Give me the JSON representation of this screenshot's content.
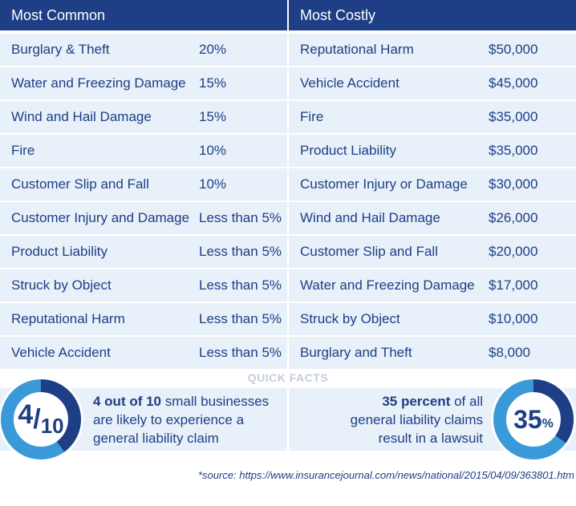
{
  "headers": {
    "left": "Most Common",
    "right": "Most Costly"
  },
  "rows": [
    {
      "common_name": "Burglary & Theft",
      "common_value": "20%",
      "costly_name": "Reputational Harm",
      "costly_value": "$50,000"
    },
    {
      "common_name": "Water and Freezing Damage",
      "common_value": "15%",
      "costly_name": "Vehicle Accident",
      "costly_value": "$45,000"
    },
    {
      "common_name": "Wind and Hail Damage",
      "common_value": "15%",
      "costly_name": "Fire",
      "costly_value": "$35,000"
    },
    {
      "common_name": "Fire",
      "common_value": "10%",
      "costly_name": "Product Liability",
      "costly_value": "$35,000"
    },
    {
      "common_name": "Customer Slip and Fall",
      "common_value": "10%",
      "costly_name": "Customer Injury or Damage",
      "costly_value": "$30,000"
    },
    {
      "common_name": "Customer Injury and Damage",
      "common_value": "Less than 5%",
      "costly_name": "Wind and Hail Damage",
      "costly_value": "$26,000"
    },
    {
      "common_name": "Product Liability",
      "common_value": "Less than 5%",
      "costly_name": "Customer Slip and Fall",
      "costly_value": "$20,000"
    },
    {
      "common_name": "Struck by Object",
      "common_value": "Less than 5%",
      "costly_name": "Water and Freezing Damage",
      "costly_value": "$17,000"
    },
    {
      "common_name": "Reputational Harm",
      "common_value": "Less than 5%",
      "costly_name": "Struck by Object",
      "costly_value": "$10,000"
    },
    {
      "common_name": "Vehicle Accident",
      "common_value": "Less than 5%",
      "costly_name": "Burglary and Theft",
      "costly_value": "$8,000"
    }
  ],
  "quick_facts": {
    "title": "QUICK FACTS",
    "left": {
      "ring_numerator": "4",
      "ring_slash": "/",
      "ring_denominator": "10",
      "ring_fraction": 0.4,
      "bold": "4 out of 10",
      "line1_rest": " small businesses",
      "line2": "are likely to experience a",
      "line3": "general liability claim"
    },
    "right": {
      "ring_number": "35",
      "ring_percent_sign": "%",
      "ring_fraction": 0.35,
      "bold": "35 percent",
      "line1_rest": " of all",
      "line2": "general liability claims",
      "line3": "result in a lawsuit"
    }
  },
  "source": "*source: https://www.insurancejournal.com/news/national/2015/04/09/363801.htm",
  "colors": {
    "navy": "#1e3f86",
    "light_blue": "#3a9ad9",
    "row_bg": "#e8f0f9",
    "quick_facts_title": "#c7ccd6"
  }
}
